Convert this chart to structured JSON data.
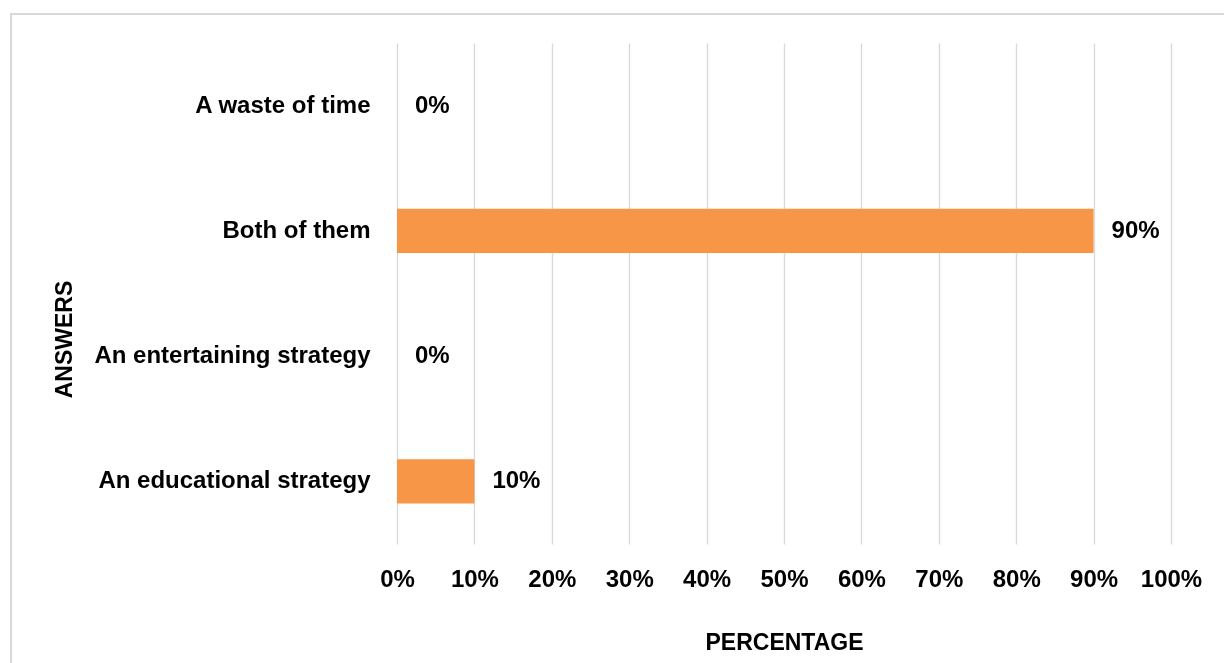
{
  "chart_data": {
    "type": "bar",
    "orientation": "horizontal",
    "xlabel": "PERCENTAGE",
    "ylabel": "ANSWERS",
    "categories": [
      "A waste of time",
      "Both of them",
      "An entertaining strategy",
      "An educational strategy"
    ],
    "values": [
      0,
      90,
      0,
      10
    ],
    "color": "#f79646",
    "value_labels": [
      "0%",
      "90%",
      "0%",
      "10%"
    ],
    "xlim": [
      0,
      100
    ],
    "xticks": [
      {
        "value": 0,
        "label": "0%"
      },
      {
        "value": 10,
        "label": "10%"
      },
      {
        "value": 20,
        "label": "20%"
      },
      {
        "value": 30,
        "label": "30%"
      },
      {
        "value": 40,
        "label": "40%"
      },
      {
        "value": 50,
        "label": "50%"
      },
      {
        "value": 60,
        "label": "60%"
      },
      {
        "value": 70,
        "label": "70%"
      },
      {
        "value": 80,
        "label": "80%"
      },
      {
        "value": 90,
        "label": "90%"
      },
      {
        "value": 100,
        "label": "100%"
      }
    ],
    "grid": "x"
  }
}
